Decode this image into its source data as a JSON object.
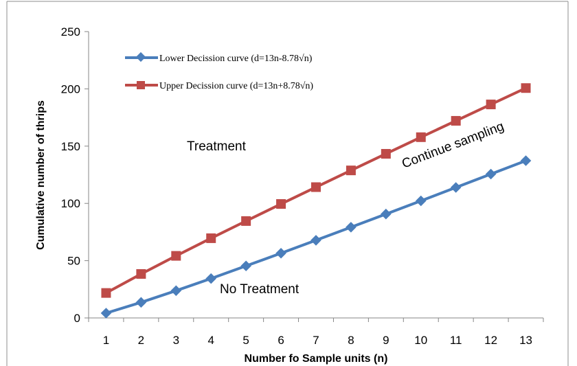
{
  "chart_data": {
    "type": "line",
    "title": "",
    "xlabel": "Number fo Sample units (n)",
    "ylabel": "Cumulative number of thrips",
    "categories": [
      "1",
      "2",
      "3",
      "4",
      "5",
      "6",
      "7",
      "8",
      "9",
      "10",
      "11",
      "12",
      "13"
    ],
    "x": [
      1,
      2,
      3,
      4,
      5,
      6,
      7,
      8,
      9,
      10,
      11,
      12,
      13
    ],
    "ylim": [
      0,
      250
    ],
    "yticks": [
      "0",
      "50",
      "100",
      "150",
      "200",
      "250"
    ],
    "grid": false,
    "legend_position": "top-left",
    "series": [
      {
        "name": "Lower Decission curve (d=13n-8.78√n)",
        "color": "#4a7ebb",
        "marker": "diamond",
        "values": [
          4.2,
          13.6,
          23.8,
          34.4,
          45.4,
          56.5,
          67.8,
          79.2,
          90.7,
          102.2,
          113.9,
          125.6,
          137.3
        ]
      },
      {
        "name": "Upper Decission curve (d=13n+8.78√n)",
        "color": "#be4b48",
        "marker": "square",
        "values": [
          21.8,
          38.4,
          54.2,
          69.6,
          84.6,
          99.5,
          114.2,
          128.8,
          143.3,
          157.8,
          172.1,
          186.4,
          200.7
        ]
      }
    ],
    "annotations": {
      "treatment": "Treatment",
      "no_treatment": "No Treatment",
      "continue_sampling": "Continue sampling"
    }
  }
}
